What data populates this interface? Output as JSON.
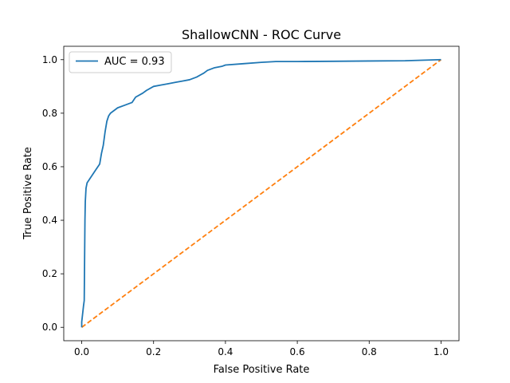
{
  "chart_data": {
    "type": "line",
    "title": "ShallowCNN - ROC Curve",
    "xlabel": "False Positive Rate",
    "ylabel": "True Positive Rate",
    "xlim": [
      -0.05,
      1.05
    ],
    "ylim": [
      -0.05,
      1.05
    ],
    "xticks": [
      0.0,
      0.2,
      0.4,
      0.6,
      0.8,
      1.0
    ],
    "yticks": [
      0.0,
      0.2,
      0.4,
      0.6,
      0.8,
      1.0
    ],
    "xtick_labels": [
      "0.0",
      "0.2",
      "0.4",
      "0.6",
      "0.8",
      "1.0"
    ],
    "ytick_labels": [
      "0.0",
      "0.2",
      "0.4",
      "0.6",
      "0.8",
      "1.0"
    ],
    "grid": false,
    "legend_placement": "upper-left",
    "series": [
      {
        "name": "AUC = 0.93",
        "color": "#1f77b4",
        "style": "solid",
        "x": [
          0.0,
          0.0,
          0.005,
          0.007,
          0.008,
          0.009,
          0.01,
          0.012,
          0.015,
          0.02,
          0.03,
          0.04,
          0.05,
          0.055,
          0.06,
          0.065,
          0.07,
          0.075,
          0.08,
          0.09,
          0.1,
          0.12,
          0.14,
          0.15,
          0.17,
          0.18,
          0.2,
          0.22,
          0.24,
          0.26,
          0.28,
          0.3,
          0.32,
          0.34,
          0.35,
          0.37,
          0.39,
          0.4,
          0.45,
          0.5,
          0.54,
          0.6,
          0.7,
          0.8,
          0.9,
          1.0
        ],
        "y": [
          0.0,
          0.02,
          0.08,
          0.1,
          0.25,
          0.4,
          0.47,
          0.52,
          0.54,
          0.55,
          0.57,
          0.59,
          0.61,
          0.65,
          0.68,
          0.73,
          0.77,
          0.79,
          0.8,
          0.81,
          0.82,
          0.83,
          0.84,
          0.86,
          0.875,
          0.885,
          0.9,
          0.905,
          0.91,
          0.915,
          0.92,
          0.925,
          0.935,
          0.95,
          0.96,
          0.97,
          0.975,
          0.98,
          0.985,
          0.99,
          0.993,
          0.993,
          0.994,
          0.995,
          0.996,
          1.0
        ]
      },
      {
        "name": "",
        "color": "#ff7f0e",
        "style": "dashed",
        "x": [
          0.0,
          1.0
        ],
        "y": [
          0.0,
          1.0
        ]
      }
    ]
  }
}
